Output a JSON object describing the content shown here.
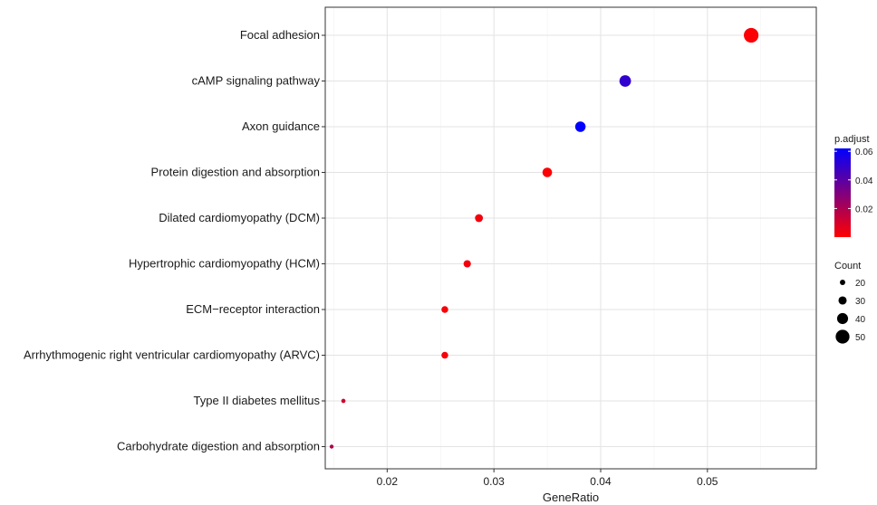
{
  "chart_data": {
    "type": "scatter",
    "title": "",
    "xlabel": "GeneRatio",
    "ylabel": "",
    "xlim": [
      0.0142,
      0.0602
    ],
    "x_ticks": [
      0.02,
      0.03,
      0.04,
      0.05
    ],
    "x_tick_labels": [
      "0.02",
      "0.03",
      "0.04",
      "0.05"
    ],
    "grid": true,
    "categories": [
      "Focal adhesion",
      "cAMP signaling pathway",
      "Axon guidance",
      "Protein digestion and absorption",
      "Dilated cardiomyopathy (DCM)",
      "Hypertrophic cardiomyopathy (HCM)",
      "ECM−receptor interaction",
      "Arrhythmogenic right ventricular cardiomyopathy (ARVC)",
      "Type II diabetes mellitus",
      "Carbohydrate digestion and absorption"
    ],
    "points": [
      {
        "term": "Focal adhesion",
        "gene_ratio": 0.0541,
        "count": 53,
        "p_adjust": 0.001
      },
      {
        "term": "cAMP signaling pathway",
        "gene_ratio": 0.0423,
        "count": 42,
        "p_adjust": 0.05
      },
      {
        "term": "Axon guidance",
        "gene_ratio": 0.0381,
        "count": 38,
        "p_adjust": 0.062
      },
      {
        "term": "Protein digestion and absorption",
        "gene_ratio": 0.035,
        "count": 35,
        "p_adjust": 0.001
      },
      {
        "term": "Dilated cardiomyopathy (DCM)",
        "gene_ratio": 0.0286,
        "count": 29,
        "p_adjust": 0.003
      },
      {
        "term": "Hypertrophic cardiomyopathy (HCM)",
        "gene_ratio": 0.0275,
        "count": 27,
        "p_adjust": 0.003
      },
      {
        "term": "ECM−receptor interaction",
        "gene_ratio": 0.0254,
        "count": 25,
        "p_adjust": 0.002
      },
      {
        "term": "Arrhythmogenic right ventricular cardiomyopathy (ARVC)",
        "gene_ratio": 0.0254,
        "count": 25,
        "p_adjust": 0.002
      },
      {
        "term": "Type II diabetes mellitus",
        "gene_ratio": 0.0159,
        "count": 16,
        "p_adjust": 0.012
      },
      {
        "term": "Carbohydrate digestion and absorption",
        "gene_ratio": 0.0148,
        "count": 15,
        "p_adjust": 0.02
      }
    ],
    "color_legend": {
      "title": "p.adjust",
      "min": 0.0,
      "max": 0.062,
      "ticks": [
        0.02,
        0.04,
        0.06
      ],
      "tick_labels": [
        "0.02",
        "0.04",
        "0.06"
      ],
      "low_color": "#ff0000",
      "high_color": "#0000ff"
    },
    "size_legend": {
      "title": "Count",
      "values": [
        20,
        30,
        40,
        50
      ],
      "labels": [
        "20",
        "30",
        "40",
        "50"
      ]
    }
  }
}
